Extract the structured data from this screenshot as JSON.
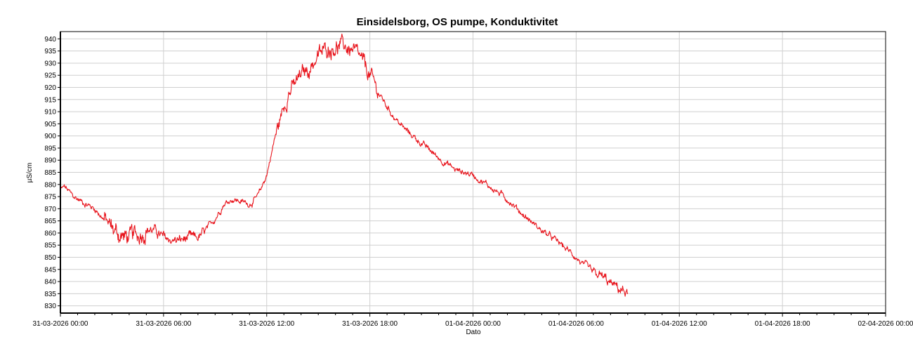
{
  "chart_data": {
    "type": "line",
    "title": "Einsidelsborg, OS pumpe, Konduktivitet",
    "xlabel": "Dato",
    "ylabel": "µS/cm",
    "x_unit": "hours since 31-03-2026 00:00",
    "xlim": [
      0,
      48
    ],
    "ylim": [
      827,
      943
    ],
    "y_ticks": [
      830,
      835,
      840,
      845,
      850,
      855,
      860,
      865,
      870,
      875,
      880,
      885,
      890,
      895,
      900,
      905,
      910,
      915,
      920,
      925,
      930,
      935,
      940
    ],
    "x_ticks": [
      {
        "value": 0,
        "label": "31-03-2026 00:00"
      },
      {
        "value": 6,
        "label": "31-03-2026 06:00"
      },
      {
        "value": 12,
        "label": "31-03-2026 12:00"
      },
      {
        "value": 18,
        "label": "31-03-2026 18:00"
      },
      {
        "value": 24,
        "label": "01-04-2026 00:00"
      },
      {
        "value": 30,
        "label": "01-04-2026 06:00"
      },
      {
        "value": 36,
        "label": "01-04-2026 12:00"
      },
      {
        "value": 42,
        "label": "01-04-2026 18:00"
      },
      {
        "value": 48,
        "label": "02-04-2026 00:00"
      }
    ],
    "grid": true,
    "series": [
      {
        "name": "",
        "color": "#e8141c",
        "x": [
          0.0,
          0.25,
          0.5,
          0.75,
          1.0,
          1.5,
          2.0,
          2.5,
          3.0,
          3.5,
          4.0,
          4.5,
          5.0,
          5.5,
          6.0,
          6.5,
          7.0,
          7.5,
          8.0,
          8.5,
          9.0,
          9.5,
          10.0,
          10.5,
          11.0,
          11.5,
          12.0,
          12.25,
          12.5,
          12.75,
          13.0,
          13.25,
          13.5,
          13.75,
          14.0,
          14.5,
          15.0,
          15.5,
          16.0,
          16.5,
          17.0,
          17.5,
          18.0,
          18.5,
          19.0,
          19.5,
          20.0,
          21.0,
          22.0,
          23.0,
          24.0,
          25.0,
          26.0,
          27.0,
          28.0,
          29.0,
          30.0,
          30.5,
          31.0,
          31.5,
          32.0,
          32.5,
          33.0
        ],
        "values": [
          878,
          879,
          877,
          875,
          874,
          872,
          870,
          866,
          862,
          859,
          858,
          859,
          862,
          861,
          858,
          857,
          857,
          858,
          858,
          861,
          866,
          872,
          874,
          873,
          872,
          875,
          884,
          892,
          900,
          906,
          912,
          918,
          920,
          922,
          925,
          928,
          933,
          936,
          937,
          937,
          935,
          931,
          925,
          918,
          912,
          907,
          903,
          897,
          891,
          886,
          884,
          879,
          874,
          867,
          861,
          856,
          850,
          846,
          843,
          842,
          839,
          837,
          835
        ]
      }
    ]
  }
}
